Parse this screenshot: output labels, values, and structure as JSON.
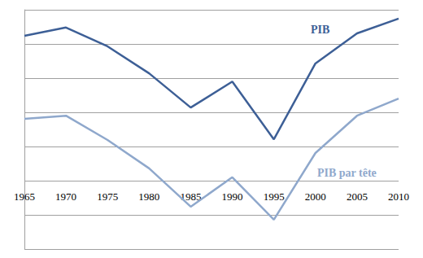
{
  "chart_data": {
    "type": "line",
    "categories": [
      "1965",
      "1970",
      "1975",
      "1980",
      "1985",
      "1990",
      "1995",
      "2000",
      "2005",
      "2010"
    ],
    "series": [
      {
        "name": "PIB",
        "color": "#3d5f96",
        "values": [
          6.24,
          6.48,
          5.93,
          5.14,
          4.14,
          4.9,
          3.21,
          5.43,
          6.31,
          6.74
        ]
      },
      {
        "name": "PIB par tête",
        "color": "#8fa8cc",
        "values": [
          3.81,
          3.9,
          3.19,
          2.36,
          1.24,
          2.1,
          0.86,
          2.81,
          3.9,
          4.4
        ]
      }
    ],
    "ylim": [
      0,
      7
    ],
    "yticks": [
      0,
      1,
      2,
      3,
      4,
      5,
      6,
      7
    ],
    "grid": true,
    "tick_labels": "x"
  }
}
